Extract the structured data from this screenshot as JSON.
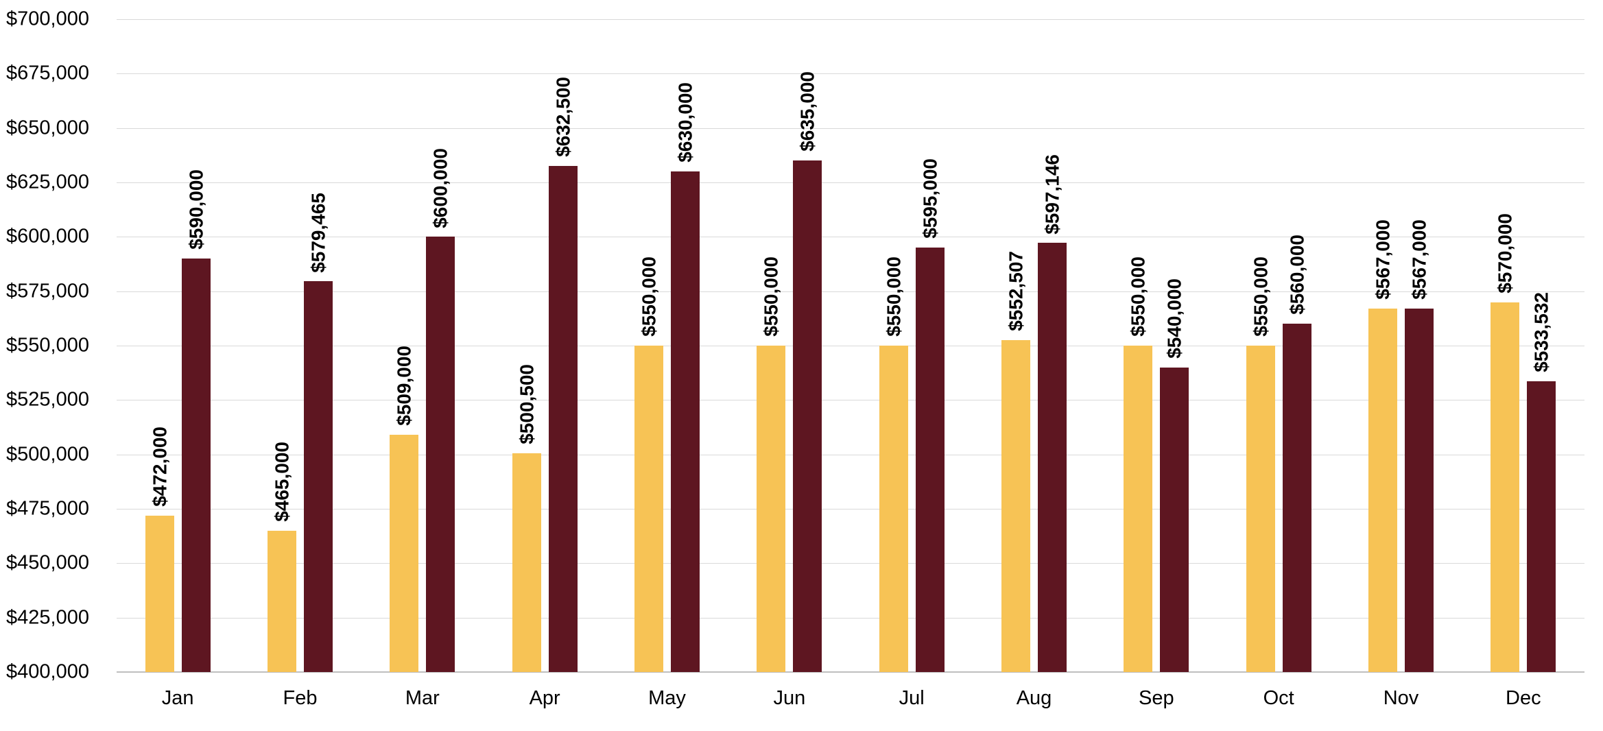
{
  "chart_data": {
    "type": "bar",
    "title": "",
    "categories": [
      "Jan",
      "Feb",
      "Mar",
      "Apr",
      "May",
      "Jun",
      "Jul",
      "Aug",
      "Sep",
      "Oct",
      "Nov",
      "Dec"
    ],
    "series": [
      {
        "id": "gold",
        "color": "#F7C355",
        "values": [
          472000,
          465000,
          509000,
          500500,
          550000,
          550000,
          550000,
          552507,
          550000,
          550000,
          567000,
          570000
        ],
        "data_labels": [
          "$472,000",
          "$465,000",
          "$509,000",
          "$500,500",
          "$550,000",
          "$550,000",
          "$550,000",
          "$552,507",
          "$550,000",
          "$550,000",
          "$567,000",
          "$570,000"
        ]
      },
      {
        "id": "maroon",
        "color": "#5E1621",
        "values": [
          590000,
          579465,
          600000,
          632500,
          630000,
          635000,
          595000,
          597146,
          540000,
          560000,
          567000,
          533532
        ],
        "data_labels": [
          "$590,000",
          "$579,465",
          "$600,000",
          "$632,500",
          "$630,000",
          "$635,000",
          "$595,000",
          "$597,146",
          "$540,000",
          "$560,000",
          "$567,000",
          "$533,532"
        ]
      }
    ],
    "y_axis": {
      "min": 400000,
      "max": 700000,
      "step": 25000,
      "tick_labels": [
        "$400,000",
        "$425,000",
        "$450,000",
        "$475,000",
        "$500,000",
        "$525,000",
        "$550,000",
        "$575,000",
        "$600,000",
        "$625,000",
        "$650,000",
        "$675,000",
        "$700,000"
      ]
    },
    "grid": true,
    "legend": "none",
    "colors": {
      "gridline": "#D9D9D9",
      "axis_line": "#BFBFBF",
      "text": "#000000",
      "background": "#FFFFFF"
    }
  }
}
